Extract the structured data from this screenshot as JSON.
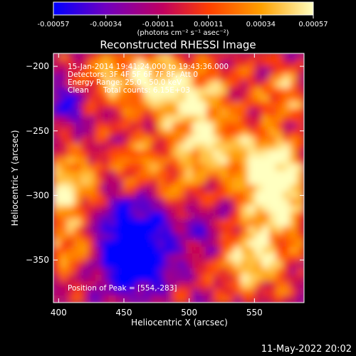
{
  "chart_data": {
    "type": "heatmap",
    "title": "Reconstructed RHESSI Image",
    "xlabel": "Heliocentric X (arcsec)",
    "ylabel": "Heliocentric Y (arcsec)",
    "xlim": [
      396,
      588
    ],
    "ylim": [
      -383,
      -190
    ],
    "x_ticks": [
      400,
      450,
      500,
      550
    ],
    "y_ticks": [
      -200,
      -250,
      -300,
      -350
    ],
    "colorbar": {
      "ticks": [
        "-0.00057",
        "-0.00034",
        "-0.00011",
        "0.00011",
        "0.00034",
        "0.00057"
      ],
      "label": "(photons cm⁻² s⁻¹ asec⁻²)",
      "range": [
        -0.00057,
        0.00057
      ],
      "colors": [
        "#0000ff",
        "#7000c0",
        "#c00060",
        "#ff4000",
        "#ffa000",
        "#ffffc0"
      ]
    },
    "annotations": [
      "15-Jan-2014 19:41:24.000 to 19:43:36.000",
      "Detectors: 3F 4F 5F 6F 7F 8F, Att 0",
      "Energy Range: 25.0 - 50.0 keV",
      "Clean",
      "Total counts: 6.15E+03",
      "Position of Peak = [554,-283]"
    ],
    "peak": {
      "x": 554,
      "y": -283
    }
  },
  "footer": {
    "timestamp": "11-May-2022 20:02"
  }
}
